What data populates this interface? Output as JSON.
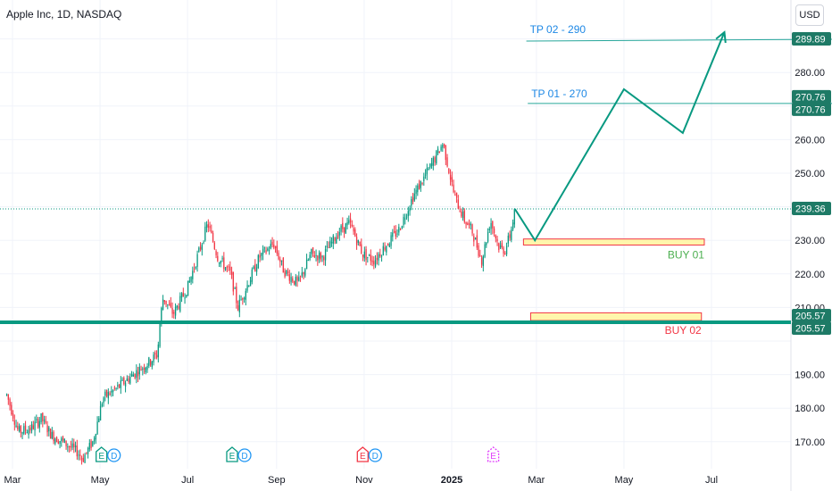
{
  "header": {
    "symbol_title": "Apple Inc, 1D, NASDAQ"
  },
  "currency_button": "USD",
  "colors": {
    "up": "#089981",
    "down": "#f23645",
    "accent": "#2962ff",
    "text": "#131722",
    "grid": "#e0e3eb",
    "zone_fill": "#fff59d"
  },
  "icons": [
    "earnings-icon",
    "dividend-icon",
    "earnings-upcoming-icon"
  ],
  "chart_data": {
    "type": "candlestick",
    "title": "Apple Inc, 1D, NASDAQ",
    "y_ticks": [
      170,
      180,
      190,
      200,
      210,
      220,
      230,
      240,
      250,
      260,
      270,
      280,
      290
    ],
    "y_tick_labels": [
      "170.00",
      "180.00",
      "190.00",
      "",
      "210.00",
      "220.00",
      "230.00",
      "",
      "250.00",
      "260.00",
      "",
      "280.00",
      ""
    ],
    "x_ticks": [
      {
        "label": "Mar",
        "date": "2024-03-01"
      },
      {
        "label": "May",
        "date": "2024-05-01"
      },
      {
        "label": "Jul",
        "date": "2024-07-01"
      },
      {
        "label": "Sep",
        "date": "2024-09-01"
      },
      {
        "label": "Nov",
        "date": "2024-11-01"
      },
      {
        "label": "2025",
        "date": "2025-01-01"
      },
      {
        "label": "Mar",
        "date": "2025-03-01"
      },
      {
        "label": "May",
        "date": "2025-05-01"
      },
      {
        "label": "Jul",
        "date": "2025-07-01"
      }
    ],
    "ylim": [
      163,
      293
    ],
    "price_path": [
      [
        "2024-02-26",
        184
      ],
      [
        "2024-03-05",
        173
      ],
      [
        "2024-03-14",
        174
      ],
      [
        "2024-03-21",
        177
      ],
      [
        "2024-03-28",
        172
      ],
      [
        "2024-04-05",
        170
      ],
      [
        "2024-04-15",
        167
      ],
      [
        "2024-04-19",
        165
      ],
      [
        "2024-04-26",
        170
      ],
      [
        "2024-05-03",
        183
      ],
      [
        "2024-05-13",
        186
      ],
      [
        "2024-05-24",
        190
      ],
      [
        "2024-06-05",
        194
      ],
      [
        "2024-06-10",
        196
      ],
      [
        "2024-06-12",
        207
      ],
      [
        "2024-06-14",
        213
      ],
      [
        "2024-06-21",
        208
      ],
      [
        "2024-07-01",
        216
      ],
      [
        "2024-07-10",
        228
      ],
      [
        "2024-07-15",
        235
      ],
      [
        "2024-07-22",
        225
      ],
      [
        "2024-07-31",
        220
      ],
      [
        "2024-08-05",
        210
      ],
      [
        "2024-08-12",
        217
      ],
      [
        "2024-08-20",
        225
      ],
      [
        "2024-08-30",
        229
      ],
      [
        "2024-09-06",
        221
      ],
      [
        "2024-09-16",
        217
      ],
      [
        "2024-09-25",
        226
      ],
      [
        "2024-10-03",
        225
      ],
      [
        "2024-10-15",
        233
      ],
      [
        "2024-10-22",
        235
      ],
      [
        "2024-10-31",
        226
      ],
      [
        "2024-11-08",
        224
      ],
      [
        "2024-11-15",
        228
      ],
      [
        "2024-11-25",
        233
      ],
      [
        "2024-12-05",
        243
      ],
      [
        "2024-12-16",
        251
      ],
      [
        "2024-12-26",
        259
      ],
      [
        "2025-01-03",
        243
      ],
      [
        "2025-01-10",
        236
      ],
      [
        "2025-01-15",
        233
      ],
      [
        "2025-01-22",
        224
      ],
      [
        "2025-01-28",
        236
      ],
      [
        "2025-02-03",
        228
      ],
      [
        "2025-02-07",
        227
      ],
      [
        "2025-02-11",
        232
      ],
      [
        "2025-02-14",
        239.36
      ]
    ],
    "events": [
      {
        "date": "2024-05-02",
        "icons": [
          "E",
          "D"
        ]
      },
      {
        "date": "2024-08-01",
        "icons": [
          "E",
          "D"
        ]
      },
      {
        "date": "2024-10-31",
        "icons": [
          "E",
          "D"
        ]
      },
      {
        "date": "2025-01-30",
        "icons": [
          "E"
        ]
      }
    ],
    "projection": [
      [
        "2025-02-14",
        239.36
      ],
      [
        "2025-02-28",
        230
      ],
      [
        "2025-05-01",
        275
      ],
      [
        "2025-06-11",
        262
      ],
      [
        "2025-07-10",
        292
      ]
    ],
    "targets": [
      {
        "label": "TP 02 - 290",
        "price": 289.89,
        "from": "2025-02-22",
        "to": "2025-07-31"
      },
      {
        "label": "TP 01 - 270",
        "price": 270.76,
        "from": "2025-02-23",
        "to": "2025-07-31"
      }
    ],
    "zones": [
      {
        "label": "BUY 01",
        "top": 230.4,
        "bottom": 228.6,
        "from": "2025-02-20",
        "to": "2025-06-26"
      },
      {
        "label": "BUY 02",
        "top": 208.4,
        "bottom": 206.1,
        "from": "2025-02-25",
        "to": "2025-06-24"
      }
    ],
    "support_line": 205.57,
    "last_price": 239.36,
    "price_tags": [
      {
        "value": 289.89,
        "text": "289.89"
      },
      {
        "value": 270.76,
        "text": "270.76"
      },
      {
        "value": 270.76,
        "text": "270.76"
      },
      {
        "value": 239.36,
        "text": "239.36"
      },
      {
        "value": 205.57,
        "text": "205.57"
      },
      {
        "value": 205.57,
        "text": "205.57"
      }
    ]
  }
}
